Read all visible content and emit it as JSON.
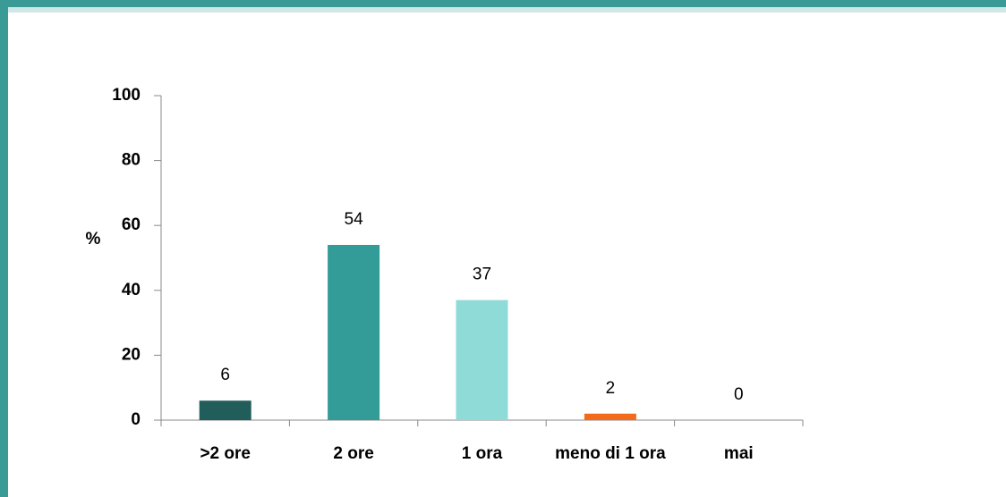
{
  "chart_data": {
    "type": "bar",
    "y_label": "%",
    "categories": [
      ">2 ore",
      "2 ore",
      "1 ora",
      "meno di 1 ora",
      "mai"
    ],
    "values": [
      6,
      54,
      37,
      2,
      0
    ],
    "colors": [
      "#215e5b",
      "#339b98",
      "#8fdbd8",
      "#f46a1b",
      "#bfbfbf"
    ],
    "ylim": [
      0,
      100
    ],
    "yticks": [
      0,
      20,
      40,
      60,
      80,
      100
    ],
    "grid": false
  }
}
